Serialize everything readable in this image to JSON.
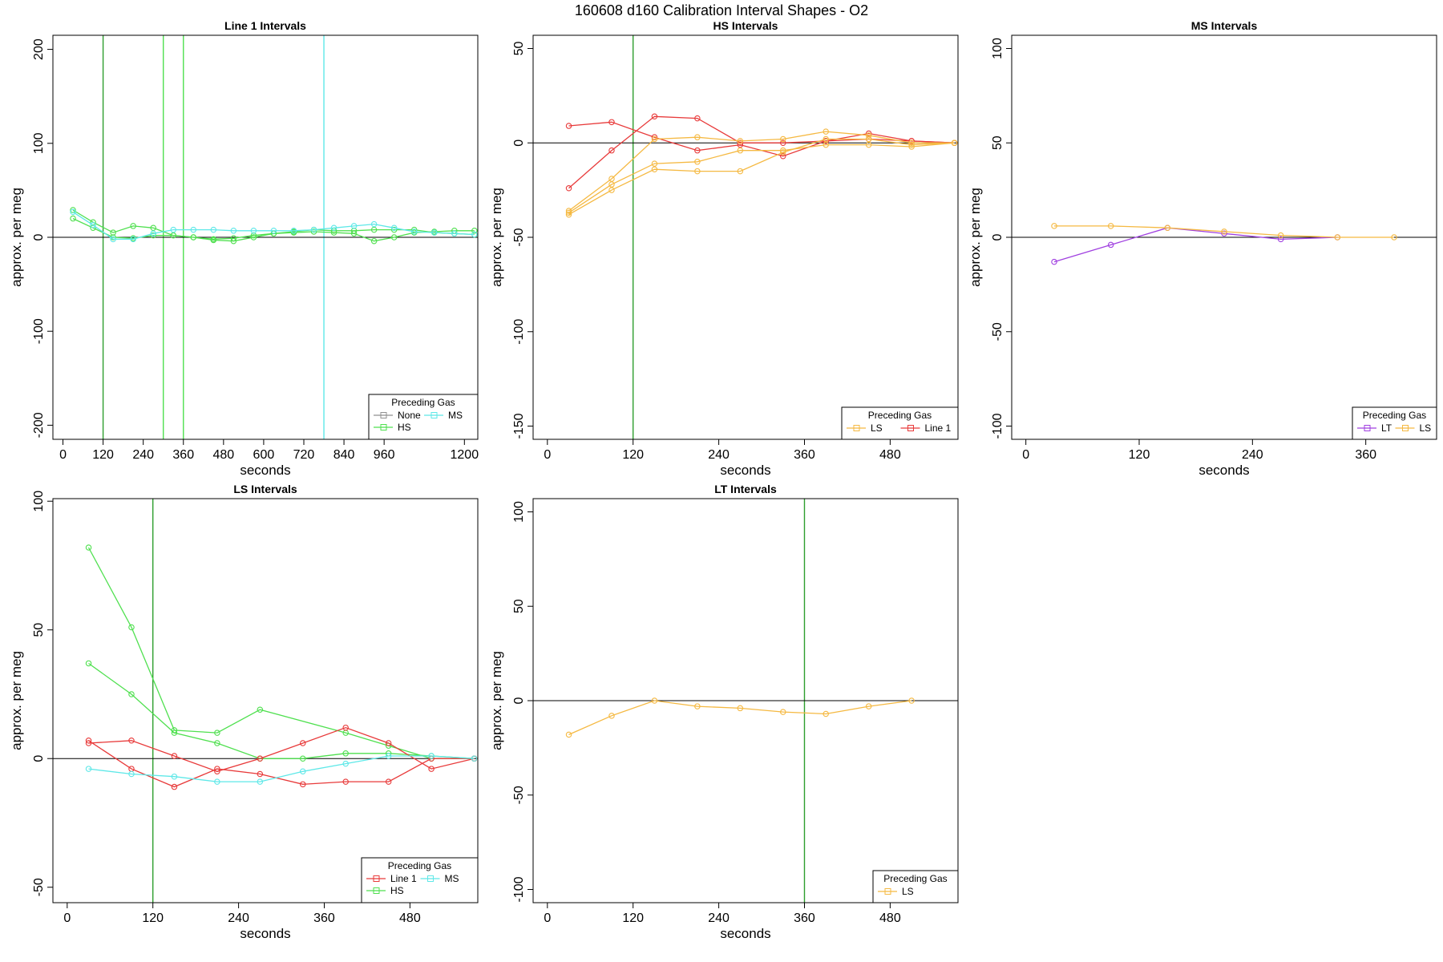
{
  "figure_title": "160608   d160   Calibration Interval Shapes - O2",
  "chart_data": [
    {
      "type": "line",
      "title": "Line 1 Intervals",
      "xlabel": "seconds",
      "ylabel": "approx. per meg",
      "xlim": [
        -30,
        1240
      ],
      "ylim": [
        -215,
        215
      ],
      "xticks": [
        0,
        120,
        240,
        360,
        480,
        600,
        720,
        840,
        960,
        1200
      ],
      "yticks": [
        -200,
        -100,
        0,
        100,
        200
      ],
      "vlines": [
        {
          "x": 120,
          "color": "#2e9e2e"
        },
        {
          "x": 300,
          "color": "#4fe04f"
        },
        {
          "x": 360,
          "color": "#4fe04f"
        },
        {
          "x": 780,
          "color": "#5ee8e8"
        }
      ],
      "legend": {
        "title": "Preceding Gas",
        "entries": [
          {
            "name": "None",
            "color": "#909090"
          },
          {
            "name": "MS",
            "color": "#5ee8e8"
          },
          {
            "name": "HS",
            "color": "#4fe04f"
          }
        ]
      },
      "series": [
        {
          "name": "HS",
          "color": "#4fe04f",
          "x": [
            30,
            90,
            150,
            210,
            270,
            330,
            390,
            450,
            510,
            570,
            630,
            690,
            750,
            810,
            870,
            930,
            990,
            1050,
            1110,
            1170,
            1230
          ],
          "y": [
            29,
            16,
            5,
            12,
            10,
            2,
            0,
            -2,
            -1,
            2,
            4,
            5,
            6,
            5,
            4,
            -4,
            0,
            5,
            6,
            7,
            7
          ]
        },
        {
          "name": "HS",
          "color": "#4fe04f",
          "x": [
            30,
            90,
            150,
            210,
            270,
            330,
            390,
            450,
            510,
            570,
            630,
            690,
            750,
            810,
            870,
            930,
            990,
            1050,
            1110,
            1170,
            1230
          ],
          "y": [
            20,
            10,
            0,
            -1,
            2,
            2,
            0,
            -3,
            -4,
            0,
            4,
            6,
            8,
            7,
            7,
            8,
            8,
            8,
            5,
            4,
            3
          ]
        },
        {
          "name": "MS",
          "color": "#5ee8e8",
          "x": [
            30,
            90,
            150,
            210,
            270,
            330,
            390,
            450,
            510,
            570,
            630,
            690,
            750,
            810,
            870,
            930,
            990,
            1050,
            1110,
            1170,
            1230
          ],
          "y": [
            27,
            13,
            -2,
            -2,
            4,
            8,
            8,
            8,
            7,
            7,
            7,
            7,
            8,
            10,
            12,
            14,
            10,
            6,
            5,
            4,
            3
          ]
        }
      ]
    },
    {
      "type": "line",
      "title": "HS Intervals",
      "xlabel": "seconds",
      "ylabel": "approx. per meg",
      "xlim": [
        -20,
        575
      ],
      "ylim": [
        -157,
        57
      ],
      "xticks": [
        0,
        120,
        240,
        360,
        480
      ],
      "yticks": [
        -150,
        -100,
        -50,
        0,
        50
      ],
      "vlines": [
        {
          "x": 120,
          "color": "#2e9e2e"
        }
      ],
      "legend": {
        "title": "Preceding Gas",
        "entries": [
          {
            "name": "LS",
            "color": "#f5b942"
          },
          {
            "name": "Line 1",
            "color": "#e83a3a"
          }
        ]
      },
      "series": [
        {
          "name": "Line 1",
          "color": "#e83a3a",
          "x": [
            30,
            90,
            150,
            210,
            270,
            330,
            390,
            450,
            510,
            570
          ],
          "y": [
            9,
            11,
            3,
            -4,
            -1,
            -7,
            1,
            5,
            1,
            0
          ]
        },
        {
          "name": "Line 1",
          "color": "#e83a3a",
          "x": [
            30,
            90,
            150,
            210,
            270,
            330,
            390,
            450,
            510,
            570
          ],
          "y": [
            -24,
            -4,
            14,
            13,
            0,
            0,
            1,
            2,
            1,
            0
          ]
        },
        {
          "name": "LS",
          "color": "#f5b942",
          "x": [
            30,
            90,
            150,
            210,
            270,
            330,
            390,
            450,
            510,
            570
          ],
          "y": [
            -36,
            -19,
            2,
            3,
            1,
            2,
            6,
            4,
            0,
            0
          ]
        },
        {
          "name": "LS",
          "color": "#f5b942",
          "x": [
            30,
            90,
            150,
            210,
            270,
            330,
            390,
            450,
            510,
            570
          ],
          "y": [
            -37,
            -22,
            -11,
            -10,
            -4,
            -4,
            -1,
            -1,
            -2,
            0
          ]
        },
        {
          "name": "LS",
          "color": "#f5b942",
          "x": [
            30,
            90,
            150,
            210,
            270,
            330,
            390,
            450,
            510,
            570
          ],
          "y": [
            -38,
            -25,
            -14,
            -15,
            -15,
            -5,
            2,
            2,
            -1,
            0
          ]
        }
      ]
    },
    {
      "type": "line",
      "title": "MS Intervals",
      "xlabel": "seconds",
      "ylabel": "approx. per meg",
      "xlim": [
        -15,
        435
      ],
      "ylim": [
        -107,
        107
      ],
      "xticks": [
        0,
        120,
        240,
        360
      ],
      "yticks": [
        -100,
        -50,
        0,
        50,
        100
      ],
      "vlines": [],
      "legend": {
        "title": "Preceding Gas",
        "entries": [
          {
            "name": "LT",
            "color": "#a040e0"
          },
          {
            "name": "LS",
            "color": "#f5b942"
          }
        ]
      },
      "series": [
        {
          "name": "LT",
          "color": "#a040e0",
          "x": [
            30,
            90,
            150,
            210,
            270,
            330
          ],
          "y": [
            -13,
            -4,
            5,
            2,
            -1,
            0
          ]
        },
        {
          "name": "LS",
          "color": "#f5b942",
          "x": [
            30,
            90,
            150,
            210,
            270,
            330,
            390
          ],
          "y": [
            6,
            6,
            5,
            3,
            1,
            0,
            0
          ]
        }
      ]
    },
    {
      "type": "line",
      "title": "LS Intervals",
      "xlabel": "seconds",
      "ylabel": "approx. per meg",
      "xlim": [
        -20,
        575
      ],
      "ylim": [
        -56,
        101
      ],
      "xticks": [
        0,
        120,
        240,
        360,
        480
      ],
      "yticks": [
        -50,
        0,
        50,
        100
      ],
      "vlines": [
        {
          "x": 120,
          "color": "#2e9e2e"
        }
      ],
      "legend": {
        "title": "Preceding Gas",
        "entries": [
          {
            "name": "Line 1",
            "color": "#e83a3a"
          },
          {
            "name": "MS",
            "color": "#5ee8e8"
          },
          {
            "name": "HS",
            "color": "#4fe04f"
          }
        ]
      },
      "series": [
        {
          "name": "HS",
          "color": "#4fe04f",
          "x": [
            30,
            90,
            150,
            210,
            270,
            390,
            450,
            510,
            570
          ],
          "y": [
            82,
            51,
            11,
            10,
            19,
            10,
            5,
            0,
            0
          ]
        },
        {
          "name": "HS",
          "color": "#4fe04f",
          "x": [
            30,
            90,
            150,
            210,
            270,
            330,
            390,
            450,
            510,
            570
          ],
          "y": [
            37,
            25,
            10,
            6,
            0,
            0,
            2,
            2,
            1,
            0
          ]
        },
        {
          "name": "Line 1",
          "color": "#e83a3a",
          "x": [
            30,
            90,
            150,
            210,
            270,
            330,
            390,
            450,
            510,
            570
          ],
          "y": [
            6,
            7,
            1,
            -5,
            0,
            6,
            12,
            6,
            -4,
            0
          ]
        },
        {
          "name": "Line 1",
          "color": "#e83a3a",
          "x": [
            30,
            90,
            150,
            210,
            270,
            330,
            390,
            450,
            510,
            570
          ],
          "y": [
            7,
            -4,
            -11,
            -4,
            -6,
            -10,
            -9,
            -9,
            0,
            0
          ]
        },
        {
          "name": "MS",
          "color": "#5ee8e8",
          "x": [
            30,
            90,
            150,
            210,
            270,
            330,
            390,
            450,
            510,
            570
          ],
          "y": [
            -4,
            -6,
            -7,
            -9,
            -9,
            -5,
            -2,
            1,
            1,
            0
          ]
        }
      ]
    },
    {
      "type": "line",
      "title": "LT Intervals",
      "xlabel": "seconds",
      "ylabel": "approx. per meg",
      "xlim": [
        -20,
        575
      ],
      "ylim": [
        -107,
        107
      ],
      "xticks": [
        0,
        120,
        240,
        360,
        480
      ],
      "yticks": [
        -100,
        -50,
        0,
        50,
        100
      ],
      "vlines": [
        {
          "x": 360,
          "color": "#2e9e2e"
        }
      ],
      "legend": {
        "title": "Preceding Gas",
        "entries": [
          {
            "name": "LS",
            "color": "#f5b942"
          }
        ]
      },
      "series": [
        {
          "name": "LS",
          "color": "#f5b942",
          "x": [
            30,
            90,
            150,
            210,
            270,
            330,
            390,
            450,
            510
          ],
          "y": [
            -18,
            -8,
            0,
            -3,
            -4,
            -6,
            -7,
            -3,
            0
          ]
        }
      ]
    }
  ]
}
